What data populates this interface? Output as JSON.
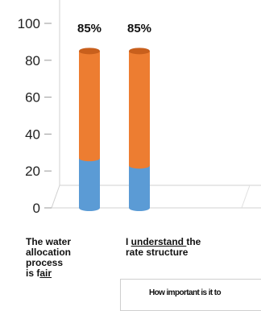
{
  "chart_data": {
    "type": "bar",
    "title": "",
    "xlabel": "",
    "ylabel": "",
    "ylim": [
      0,
      100
    ],
    "yticks": [
      0,
      20,
      40,
      60,
      80,
      100
    ],
    "grid": false,
    "categories": [
      "The water allocation process is fair",
      "I understand the rate structure",
      ""
    ],
    "stacks": [
      {
        "segments": [
          27,
          58
        ],
        "total_label": "85%"
      },
      {
        "segments": [
          23,
          62
        ],
        "total_label": "85%"
      },
      {
        "segments": [
          0,
          0
        ],
        "total_label": ""
      }
    ],
    "colors": {
      "bottom": "#5b9bd5",
      "top": "#ed7d31"
    }
  },
  "categories_text": {
    "cat1": {
      "l1": "The water",
      "l2": "allocation",
      "l3": "process",
      "l4_pre": "is f",
      "l4_u": "air"
    },
    "cat2": {
      "l1_pre": "I ",
      "l1_u": "understand ",
      "l1_post": "the",
      "l2": "rate structure"
    }
  },
  "legend": {
    "text": "How important is it to"
  }
}
